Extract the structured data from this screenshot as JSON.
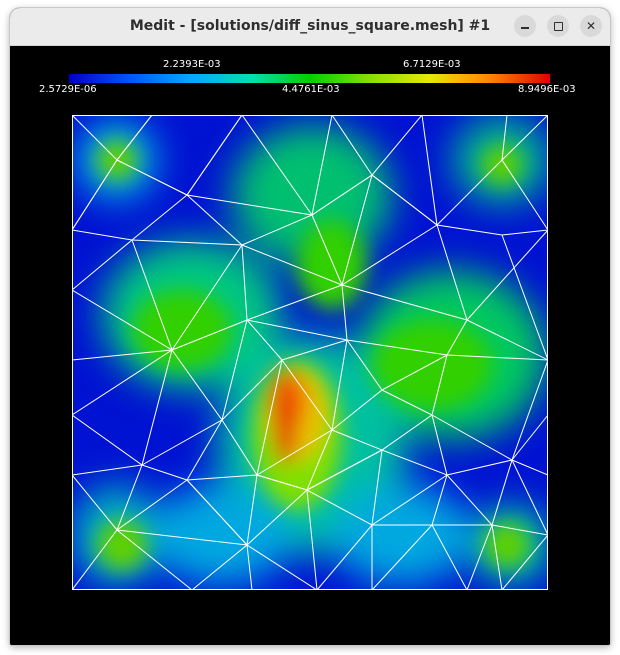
{
  "window": {
    "title": "Medit - [solutions/diff_sinus_square.mesh] #1",
    "buttons": {
      "minimize_icon": "minimize-icon",
      "maximize_icon": "maximize-icon",
      "close_icon": "close-icon"
    }
  },
  "colorbar": {
    "top_labels": [
      "2.2393E-03",
      "6.7129E-03"
    ],
    "bottom_labels": [
      "2.5729E-06",
      "4.4761E-03",
      "8.9496E-03"
    ],
    "colors": [
      "#0000c8",
      "#0050ff",
      "#00a8ff",
      "#00e0b0",
      "#00d000",
      "#80e000",
      "#e8e800",
      "#ff8000",
      "#e00000"
    ]
  },
  "mesh": {
    "background": "#0010d0",
    "edge_color": "#ffffff",
    "frame_color": "#ffffff"
  }
}
